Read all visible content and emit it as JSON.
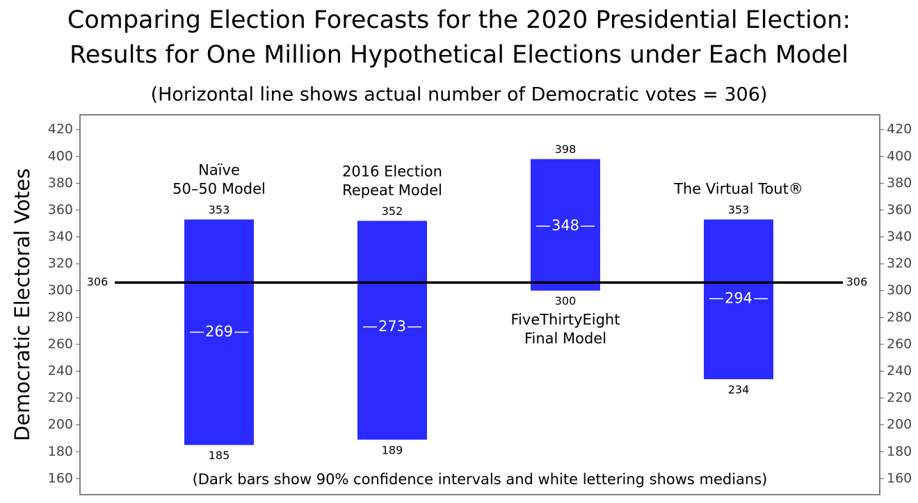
{
  "chart_data": {
    "type": "range_bar",
    "title": [
      "Comparing Election Forecasts for the 2020 Presidential Election:",
      "Results for One Million Hypothetical Elections under Each Model"
    ],
    "subtitle": "(Horizontal line shows actual number of Democratic votes = 306)",
    "note": "(Dark bars show 90% confidence intervals and white lettering shows medians)",
    "ylabel": "Democratic Electoral Votes",
    "categories": [
      [
        "Naïve",
        "50–50 Model"
      ],
      [
        "2016 Election",
        "Repeat Model"
      ],
      [
        "FiveThirtyEight",
        "Final Model"
      ],
      [
        "The Virtual Tout®"
      ]
    ],
    "low": [
      185,
      189,
      300,
      234
    ],
    "high": [
      353,
      352,
      398,
      353
    ],
    "median": [
      269,
      273,
      348,
      294
    ],
    "color": "#2b2bff",
    "reference_line": 306,
    "ylim": [
      148,
      431
    ],
    "yticks": [
      160,
      180,
      200,
      220,
      240,
      260,
      280,
      300,
      320,
      340,
      360,
      380,
      400,
      420
    ],
    "right_axis": true
  }
}
